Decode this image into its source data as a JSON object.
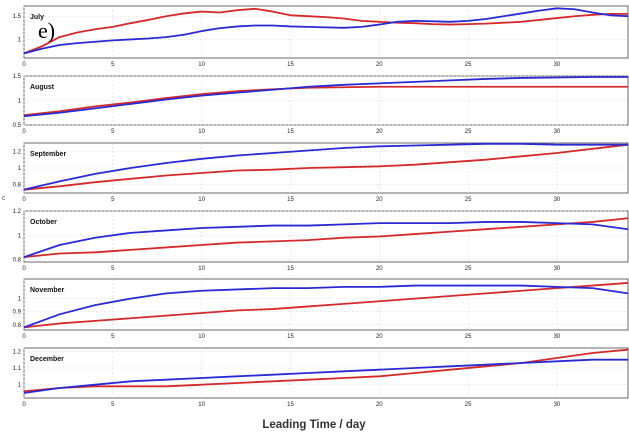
{
  "panel_label": "e)",
  "y_axis_label": "c",
  "chart_data": [
    {
      "type": "line",
      "title": "July",
      "xlabel": "",
      "xlim": [
        0,
        34
      ],
      "ylim": [
        0.6,
        1.72
      ],
      "yticks": [
        "1",
        "1.5"
      ],
      "xticks": [
        "0",
        "5",
        "10",
        "15",
        "20",
        "25",
        "30"
      ],
      "grid": true,
      "series": [
        {
          "color": "#d42a2a",
          "x": [
            0,
            1,
            2,
            3,
            4,
            5,
            6,
            7,
            8,
            9,
            10,
            11,
            12,
            13,
            14,
            15,
            16,
            17,
            18,
            19,
            20,
            21,
            22,
            23,
            24,
            25,
            26,
            27,
            28,
            29,
            30,
            31,
            32,
            33,
            34
          ],
          "values": [
            0.7,
            0.85,
            1.05,
            1.15,
            1.22,
            1.27,
            1.35,
            1.42,
            1.5,
            1.56,
            1.6,
            1.58,
            1.63,
            1.66,
            1.6,
            1.52,
            1.5,
            1.48,
            1.45,
            1.4,
            1.38,
            1.36,
            1.35,
            1.33,
            1.32,
            1.33,
            1.34,
            1.36,
            1.38,
            1.42,
            1.46,
            1.5,
            1.53,
            1.55,
            1.55
          ]
        },
        {
          "color": "#2a2ad4",
          "x": [
            0,
            1,
            2,
            3,
            4,
            5,
            6,
            7,
            8,
            9,
            10,
            11,
            12,
            13,
            14,
            15,
            16,
            17,
            18,
            19,
            20,
            21,
            22,
            23,
            24,
            25,
            26,
            27,
            28,
            29,
            30,
            31,
            32,
            33,
            34
          ],
          "values": [
            0.7,
            0.8,
            0.88,
            0.92,
            0.95,
            0.98,
            1.0,
            1.02,
            1.05,
            1.1,
            1.18,
            1.24,
            1.28,
            1.3,
            1.3,
            1.28,
            1.27,
            1.26,
            1.25,
            1.27,
            1.32,
            1.38,
            1.4,
            1.39,
            1.38,
            1.4,
            1.44,
            1.5,
            1.56,
            1.62,
            1.67,
            1.65,
            1.58,
            1.52,
            1.5
          ]
        }
      ]
    },
    {
      "type": "line",
      "title": "August",
      "xlabel": "",
      "xlim": [
        0,
        34
      ],
      "ylim": [
        0.5,
        1.5
      ],
      "yticks": [
        "0.5",
        "1",
        "1.5"
      ],
      "xticks": [
        "0",
        "5",
        "10",
        "15",
        "20",
        "25",
        "30"
      ],
      "grid": true,
      "series": [
        {
          "color": "#d42a2a",
          "x": [
            0,
            2,
            4,
            6,
            8,
            10,
            12,
            14,
            16,
            18,
            20,
            22,
            24,
            26,
            28,
            30,
            32,
            34
          ],
          "values": [
            0.7,
            0.78,
            0.88,
            0.96,
            1.05,
            1.13,
            1.19,
            1.23,
            1.26,
            1.27,
            1.28,
            1.28,
            1.28,
            1.28,
            1.28,
            1.28,
            1.28,
            1.28
          ]
        },
        {
          "color": "#2a2ad4",
          "x": [
            0,
            2,
            4,
            6,
            8,
            10,
            12,
            14,
            16,
            18,
            20,
            22,
            24,
            26,
            28,
            30,
            32,
            34
          ],
          "values": [
            0.68,
            0.75,
            0.84,
            0.93,
            1.02,
            1.1,
            1.16,
            1.22,
            1.28,
            1.32,
            1.35,
            1.38,
            1.41,
            1.44,
            1.46,
            1.47,
            1.48,
            1.48
          ]
        }
      ]
    },
    {
      "type": "line",
      "title": "September",
      "xlabel": "",
      "xlim": [
        0,
        34
      ],
      "ylim": [
        0.7,
        1.3
      ],
      "yticks": [
        "0.8",
        "1",
        "1.2"
      ],
      "xticks": [
        "0",
        "5",
        "10",
        "15",
        "20",
        "25",
        "30"
      ],
      "grid": true,
      "series": [
        {
          "color": "#d42a2a",
          "x": [
            0,
            2,
            4,
            6,
            8,
            10,
            12,
            14,
            16,
            18,
            20,
            22,
            24,
            26,
            28,
            30,
            32,
            34
          ],
          "values": [
            0.74,
            0.78,
            0.83,
            0.87,
            0.91,
            0.94,
            0.97,
            0.98,
            1.0,
            1.01,
            1.02,
            1.04,
            1.07,
            1.1,
            1.14,
            1.18,
            1.23,
            1.28
          ]
        },
        {
          "color": "#2a2ad4",
          "x": [
            0,
            2,
            4,
            6,
            8,
            10,
            12,
            14,
            16,
            18,
            20,
            22,
            24,
            26,
            28,
            30,
            32,
            34
          ],
          "values": [
            0.74,
            0.84,
            0.93,
            1.0,
            1.06,
            1.11,
            1.15,
            1.18,
            1.21,
            1.24,
            1.26,
            1.27,
            1.28,
            1.29,
            1.29,
            1.28,
            1.28,
            1.28
          ]
        }
      ]
    },
    {
      "type": "line",
      "title": "October",
      "xlabel": "",
      "xlim": [
        0,
        34
      ],
      "ylim": [
        0.78,
        1.2
      ],
      "yticks": [
        "0.8",
        "1",
        "1.2"
      ],
      "xticks": [
        "0",
        "5",
        "10",
        "15",
        "20",
        "25",
        "30"
      ],
      "grid": true,
      "series": [
        {
          "color": "#d42a2a",
          "x": [
            0,
            2,
            4,
            6,
            8,
            10,
            12,
            14,
            16,
            18,
            20,
            22,
            24,
            26,
            28,
            30,
            32,
            34
          ],
          "values": [
            0.82,
            0.85,
            0.86,
            0.88,
            0.9,
            0.92,
            0.94,
            0.95,
            0.96,
            0.98,
            0.99,
            1.01,
            1.03,
            1.05,
            1.07,
            1.09,
            1.11,
            1.14
          ]
        },
        {
          "color": "#2a2ad4",
          "x": [
            0,
            2,
            4,
            6,
            8,
            10,
            12,
            14,
            16,
            18,
            20,
            22,
            24,
            26,
            28,
            30,
            32,
            34
          ],
          "values": [
            0.82,
            0.92,
            0.98,
            1.02,
            1.04,
            1.06,
            1.07,
            1.08,
            1.08,
            1.09,
            1.1,
            1.1,
            1.1,
            1.11,
            1.11,
            1.1,
            1.09,
            1.05
          ]
        }
      ]
    },
    {
      "type": "line",
      "title": "November",
      "xlabel": "",
      "xlim": [
        0,
        34
      ],
      "ylim": [
        0.76,
        1.15
      ],
      "yticks": [
        "0.8",
        "0.9",
        "1"
      ],
      "xticks": [
        "0",
        "5",
        "10",
        "15",
        "20",
        "25",
        "30"
      ],
      "grid": true,
      "series": [
        {
          "color": "#d42a2a",
          "x": [
            0,
            2,
            4,
            6,
            8,
            10,
            12,
            14,
            16,
            18,
            20,
            22,
            24,
            26,
            28,
            30,
            32,
            34
          ],
          "values": [
            0.78,
            0.81,
            0.83,
            0.85,
            0.87,
            0.89,
            0.91,
            0.92,
            0.94,
            0.96,
            0.98,
            1.0,
            1.02,
            1.04,
            1.06,
            1.08,
            1.1,
            1.12
          ]
        },
        {
          "color": "#2a2ad4",
          "x": [
            0,
            2,
            4,
            6,
            8,
            10,
            12,
            14,
            16,
            18,
            20,
            22,
            24,
            26,
            28,
            30,
            32,
            34
          ],
          "values": [
            0.78,
            0.88,
            0.95,
            1.0,
            1.04,
            1.06,
            1.07,
            1.08,
            1.08,
            1.09,
            1.09,
            1.1,
            1.1,
            1.1,
            1.1,
            1.09,
            1.08,
            1.04
          ]
        }
      ]
    },
    {
      "type": "line",
      "title": "December",
      "xlabel": "Leading Time / day",
      "xlim": [
        0,
        34
      ],
      "ylim": [
        0.92,
        1.22
      ],
      "yticks": [
        "1",
        "1.1",
        "1.2"
      ],
      "xticks": [
        "0",
        "5",
        "10",
        "15",
        "20",
        "25",
        "30"
      ],
      "grid": true,
      "series": [
        {
          "color": "#d42a2a",
          "x": [
            0,
            2,
            4,
            6,
            8,
            10,
            12,
            14,
            16,
            18,
            20,
            22,
            24,
            26,
            28,
            30,
            32,
            34
          ],
          "values": [
            0.96,
            0.98,
            0.99,
            0.99,
            0.99,
            1.0,
            1.01,
            1.02,
            1.03,
            1.04,
            1.05,
            1.07,
            1.09,
            1.11,
            1.13,
            1.16,
            1.19,
            1.21
          ]
        },
        {
          "color": "#2a2ad4",
          "x": [
            0,
            2,
            4,
            6,
            8,
            10,
            12,
            14,
            16,
            18,
            20,
            22,
            24,
            26,
            28,
            30,
            32,
            34
          ],
          "values": [
            0.95,
            0.98,
            1.0,
            1.02,
            1.03,
            1.04,
            1.05,
            1.06,
            1.07,
            1.08,
            1.09,
            1.1,
            1.11,
            1.12,
            1.13,
            1.14,
            1.15,
            1.15
          ]
        }
      ]
    }
  ]
}
